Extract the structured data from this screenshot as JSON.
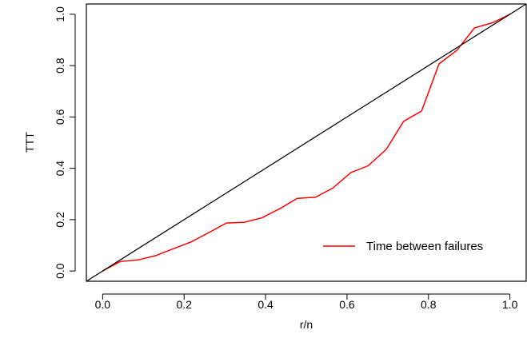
{
  "chart_data": {
    "type": "line",
    "title": "",
    "xlabel": "r/n",
    "ylabel": "TTT",
    "xlim": [
      -0.04,
      1.04
    ],
    "ylim": [
      -0.04,
      1.04
    ],
    "x_ticks": [
      0.0,
      0.2,
      0.4,
      0.6,
      0.8,
      1.0
    ],
    "x_tick_labels": [
      "0.0",
      "0.2",
      "0.4",
      "0.6",
      "0.8",
      "1.0"
    ],
    "y_ticks": [
      0.0,
      0.2,
      0.4,
      0.6,
      0.8,
      1.0
    ],
    "y_tick_labels": [
      "0.0",
      "0.2",
      "0.4",
      "0.6",
      "0.8",
      "1.0"
    ],
    "grid": false,
    "legend_position": "bottom-right",
    "series": [
      {
        "name": "Time between failures",
        "color": "#ff0000",
        "x": [
          0.0,
          0.043,
          0.087,
          0.13,
          0.174,
          0.217,
          0.261,
          0.304,
          0.348,
          0.391,
          0.435,
          0.478,
          0.522,
          0.565,
          0.609,
          0.652,
          0.696,
          0.739,
          0.783,
          0.826,
          0.87,
          0.913,
          0.957,
          1.0
        ],
        "y": [
          0.0,
          0.037,
          0.043,
          0.06,
          0.087,
          0.113,
          0.15,
          0.187,
          0.19,
          0.207,
          0.243,
          0.283,
          0.287,
          0.323,
          0.383,
          0.41,
          0.473,
          0.583,
          0.623,
          0.807,
          0.86,
          0.947,
          0.967,
          1.0
        ]
      },
      {
        "name": "",
        "color": "#000000",
        "x": [
          -0.04,
          1.04
        ],
        "y": [
          -0.04,
          1.04
        ]
      }
    ]
  }
}
